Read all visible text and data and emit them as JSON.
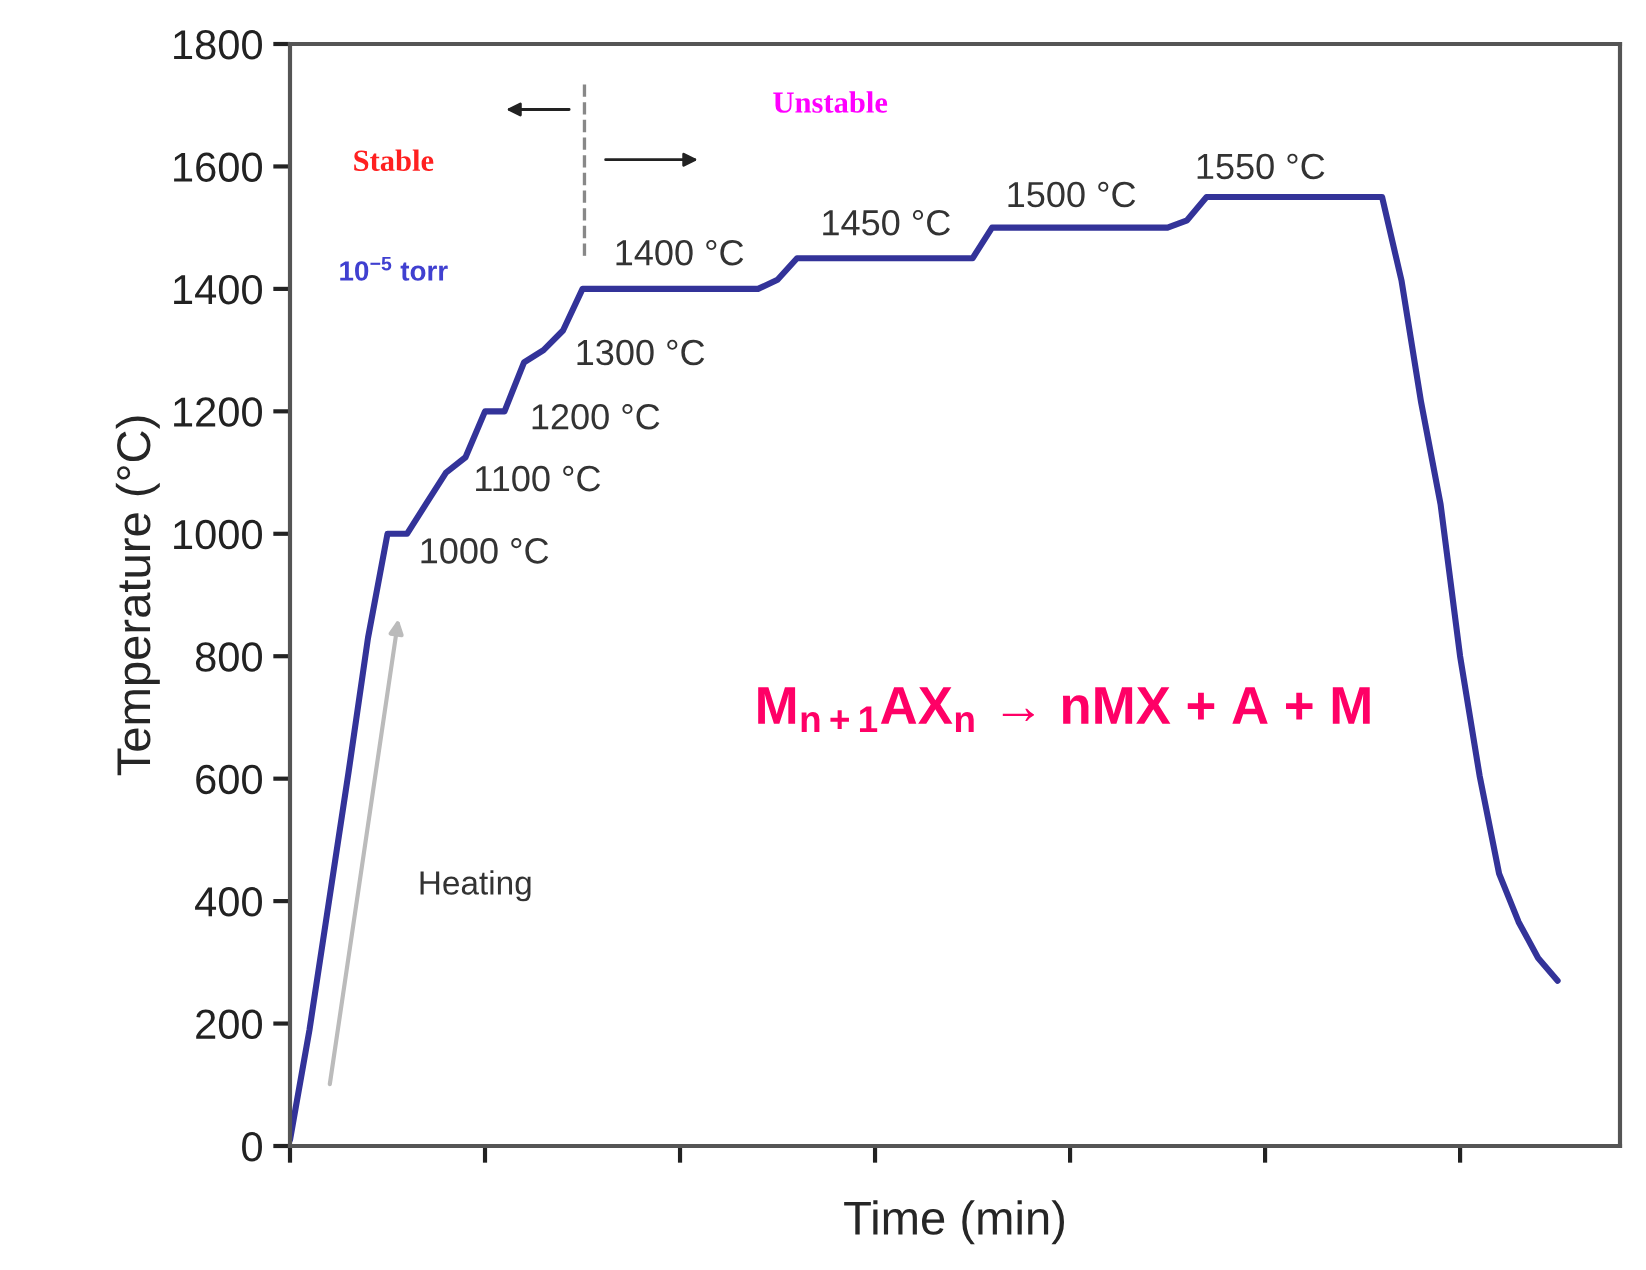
{
  "chart_data": {
    "type": "line",
    "xlabel": "Time (min)",
    "ylabel": "Temperature (°C)",
    "categories": [
      null,
      null,
      null,
      null,
      null,
      null,
      null,
      null,
      null,
      null,
      null,
      null,
      null,
      null,
      null,
      null,
      null,
      null,
      null,
      null,
      null,
      null,
      null,
      null,
      null,
      null,
      null,
      null,
      null,
      null,
      null,
      null,
      null,
      null,
      null,
      null,
      null,
      null,
      null,
      null,
      null,
      null,
      null,
      null,
      null,
      null,
      null,
      null,
      null,
      null,
      null,
      null,
      null,
      null,
      null,
      null,
      null,
      null,
      null,
      null,
      null,
      null,
      null,
      null,
      null,
      null
    ],
    "series": [
      {
        "color": "#333399",
        "values": [
          10,
          190,
          400,
          610,
          830,
          1000,
          1000,
          1050,
          1100,
          1125,
          1200,
          1200,
          1280,
          1300,
          1332,
          1400,
          1400,
          1400,
          1400,
          1400,
          1400,
          1400,
          1400,
          1400,
          1400,
          1415,
          1450,
          1450,
          1450,
          1450,
          1450,
          1450,
          1450,
          1450,
          1450,
          1450,
          1500,
          1500,
          1500,
          1500,
          1500,
          1500,
          1500,
          1500,
          1500,
          1500,
          1512,
          1550,
          1550,
          1550,
          1550,
          1550,
          1550,
          1550,
          1550,
          1550,
          1550,
          1413,
          1215,
          1048,
          800,
          605,
          445,
          366,
          307,
          270
        ]
      }
    ],
    "ylim": [
      0,
      1800
    ],
    "yticks": [
      0,
      200,
      400,
      600,
      800,
      1000,
      1200,
      1400,
      1600,
      1800
    ],
    "grid": false,
    "marker": "none",
    "line_style": "solid",
    "annotations": [
      "1000 °C",
      "1100 °C",
      "1200 °C",
      "1300 °C",
      "1400 °C",
      "1450 °C",
      "1500 °C",
      "1550 °C",
      "Stable",
      "Unstable",
      "10$^{−5}$ torr",
      "Heating",
      "M$_{n+1}$AX$_{n}$ → nMX + A + M"
    ]
  }
}
